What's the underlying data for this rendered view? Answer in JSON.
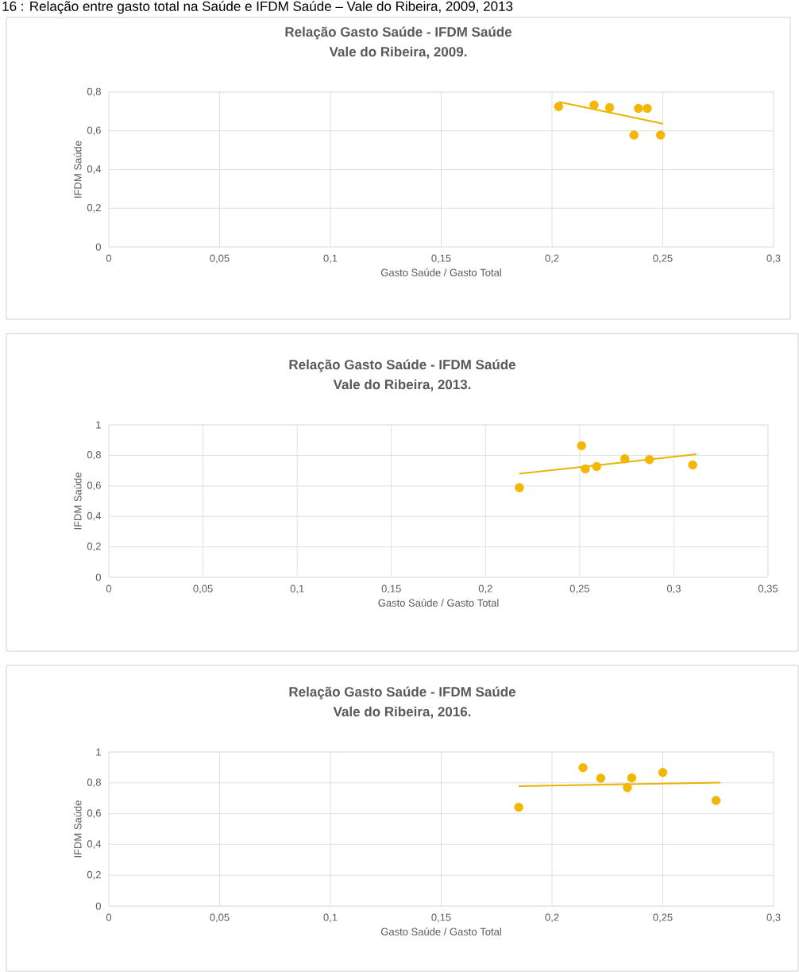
{
  "chart_data": [
    {
      "type": "scatter",
      "title": "Relação Gasto Saúde - IFDM Saúde",
      "subtitle": "Vale do Ribeira, 2009.",
      "xlabel": "Gasto Saúde / Gasto Total",
      "ylabel": "IFDM Saúde",
      "annotations": [
        "16 : Relação entre gasto total na Saúde e IFDM Saúde – Vale do Ribeira, 2009, 2013"
      ],
      "xlim": [
        0,
        0.3
      ],
      "ylim": [
        0,
        0.8
      ],
      "xticks": [
        0,
        {
          "value": 0.05,
          "label": "0,05"
        },
        {
          "value": 0.1,
          "label": "0,1"
        },
        {
          "value": 0.15,
          "label": "0,15"
        },
        {
          "value": 0.2,
          "label": "0,2"
        },
        {
          "value": 0.25,
          "label": "0,25"
        },
        {
          "value": 0.3,
          "label": "0,3"
        }
      ],
      "yticks": [
        0,
        {
          "value": 0.2,
          "label": "0,2"
        },
        {
          "value": 0.4,
          "label": "0,4"
        },
        {
          "value": 0.6,
          "label": "0,6"
        },
        {
          "value": 0.8,
          "label": "0,8"
        }
      ],
      "grid": true,
      "series": [
        {
          "type": "scatter",
          "marker": "circle",
          "color": "#f2b705",
          "x": [
            0.203,
            0.219,
            0.226,
            0.239,
            0.243,
            0.237,
            0.249
          ],
          "values": [
            0.725,
            0.733,
            0.72,
            0.716,
            0.716,
            0.578,
            0.578
          ]
        },
        {
          "type": "line",
          "marker": "none",
          "color": "#e8b400",
          "x": [
            0.203,
            0.25
          ],
          "values": [
            0.75,
            0.637
          ]
        }
      ]
    },
    {
      "type": "scatter",
      "title": "Relação Gasto Saúde - IFDM Saúde",
      "subtitle": "Vale do Ribeira, 2013.",
      "xlabel": "Gasto Saúde / Gasto Total",
      "ylabel": "IFDM Saúde",
      "xlim": [
        0,
        0.35
      ],
      "ylim": [
        0,
        1
      ],
      "xticks": [
        0,
        {
          "value": 0.05,
          "label": "0,05"
        },
        {
          "value": 0.1,
          "label": "0,1"
        },
        {
          "value": 0.15,
          "label": "0,15"
        },
        {
          "value": 0.2,
          "label": "0,2"
        },
        {
          "value": 0.25,
          "label": "0,25"
        },
        {
          "value": 0.3,
          "label": "0,3"
        },
        {
          "value": 0.35,
          "label": "0,35"
        }
      ],
      "yticks": [
        0,
        {
          "value": 0.2,
          "label": "0,2"
        },
        {
          "value": 0.4,
          "label": "0,4"
        },
        {
          "value": 0.6,
          "label": "0,6"
        },
        {
          "value": 0.8,
          "label": "0,8"
        },
        1
      ],
      "grid": true,
      "series": [
        {
          "type": "scatter",
          "marker": "circle",
          "color": "#f2b705",
          "x": [
            0.218,
            0.251,
            0.253,
            0.259,
            0.274,
            0.287,
            0.31
          ],
          "values": [
            0.588,
            0.863,
            0.711,
            0.727,
            0.777,
            0.772,
            0.737
          ]
        },
        {
          "type": "line",
          "marker": "none",
          "color": "#e8b400",
          "x": [
            0.218,
            0.312
          ],
          "values": [
            0.68,
            0.807
          ]
        }
      ]
    },
    {
      "type": "scatter",
      "title": "Relação Gasto Saúde - IFDM Saúde",
      "subtitle": "Vale do Ribeira, 2016.",
      "xlabel": "Gasto Saúde / Gasto Total",
      "ylabel": "IFDM Saúde",
      "xlim": [
        0,
        0.3
      ],
      "ylim": [
        0,
        1
      ],
      "xticks": [
        0,
        {
          "value": 0.05,
          "label": "0,05"
        },
        {
          "value": 0.1,
          "label": "0,1"
        },
        {
          "value": 0.15,
          "label": "0,15"
        },
        {
          "value": 0.2,
          "label": "0,2"
        },
        {
          "value": 0.25,
          "label": "0,25"
        },
        {
          "value": 0.3,
          "label": "0,3"
        }
      ],
      "yticks": [
        0,
        {
          "value": 0.2,
          "label": "0,2"
        },
        {
          "value": 0.4,
          "label": "0,4"
        },
        {
          "value": 0.6,
          "label": "0,6"
        },
        {
          "value": 0.8,
          "label": "0,8"
        },
        1
      ],
      "grid": true,
      "series": [
        {
          "type": "scatter",
          "marker": "circle",
          "color": "#f2b705",
          "x": [
            0.185,
            0.214,
            0.222,
            0.236,
            0.234,
            0.25,
            0.274
          ],
          "values": [
            0.642,
            0.898,
            0.83,
            0.832,
            0.77,
            0.868,
            0.686
          ]
        },
        {
          "type": "line",
          "marker": "none",
          "color": "#e8b400",
          "x": [
            0.185,
            0.276
          ],
          "values": [
            0.779,
            0.802
          ]
        }
      ]
    }
  ]
}
